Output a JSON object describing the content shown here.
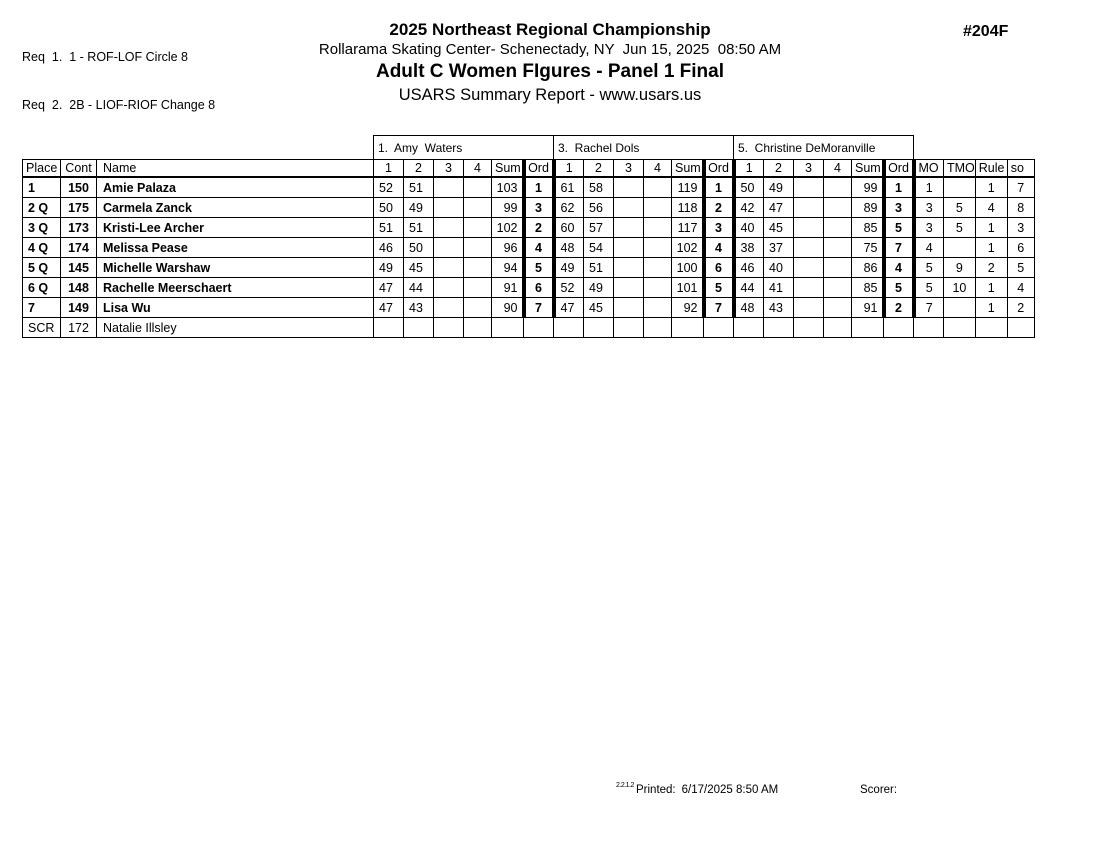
{
  "header": {
    "req_lines": [
      "Req  1.  1 - ROF-LOF Circle 8",
      "Req  2.  2B - LIOF-RIOF Change 8"
    ],
    "title": "2025 Northeast Regional Championship",
    "venue_datetime": "Rollarama Skating Center- Schenectady, NY  Jun 15, 2025  08:50 AM",
    "event_title": "Adult C Women FIgures - Panel 1 Final",
    "report_title": "USARS Summary Report - www.usars.us",
    "event_number": "#204F"
  },
  "table": {
    "judges": [
      "1.  Amy  Waters",
      "3.  Rachel Dols",
      "5.  Christine DeMoranville"
    ],
    "left_headers": [
      "Place",
      "Cont",
      "Name"
    ],
    "judge_headers": [
      "1",
      "2",
      "3",
      "4",
      "Sum",
      "Ord"
    ],
    "right_headers": [
      "MO",
      "TMO",
      "Rule",
      "so"
    ],
    "rows": [
      {
        "place": "1",
        "cont": "150",
        "name": "Amie Palaza",
        "scores": [
          [
            "52",
            "51",
            "",
            "",
            "103",
            "1"
          ],
          [
            "61",
            "58",
            "",
            "",
            "119",
            "1"
          ],
          [
            "50",
            "49",
            "",
            "",
            "99",
            "1"
          ]
        ],
        "mo": "1",
        "tmo": "",
        "rule": "1",
        "so": "7",
        "scratched": false
      },
      {
        "place": "2 Q",
        "cont": "175",
        "name": "Carmela Zanck",
        "scores": [
          [
            "50",
            "49",
            "",
            "",
            "99",
            "3"
          ],
          [
            "62",
            "56",
            "",
            "",
            "118",
            "2"
          ],
          [
            "42",
            "47",
            "",
            "",
            "89",
            "3"
          ]
        ],
        "mo": "3",
        "tmo": "5",
        "rule": "4",
        "so": "8",
        "scratched": false
      },
      {
        "place": "3 Q",
        "cont": "173",
        "name": "Kristi-Lee Archer",
        "scores": [
          [
            "51",
            "51",
            "",
            "",
            "102",
            "2"
          ],
          [
            "60",
            "57",
            "",
            "",
            "117",
            "3"
          ],
          [
            "40",
            "45",
            "",
            "",
            "85",
            "5"
          ]
        ],
        "mo": "3",
        "tmo": "5",
        "rule": "1",
        "so": "3",
        "scratched": false
      },
      {
        "place": "4 Q",
        "cont": "174",
        "name": "Melissa Pease",
        "scores": [
          [
            "46",
            "50",
            "",
            "",
            "96",
            "4"
          ],
          [
            "48",
            "54",
            "",
            "",
            "102",
            "4"
          ],
          [
            "38",
            "37",
            "",
            "",
            "75",
            "7"
          ]
        ],
        "mo": "4",
        "tmo": "",
        "rule": "1",
        "so": "6",
        "scratched": false
      },
      {
        "place": "5 Q",
        "cont": "145",
        "name": "Michelle Warshaw",
        "scores": [
          [
            "49",
            "45",
            "",
            "",
            "94",
            "5"
          ],
          [
            "49",
            "51",
            "",
            "",
            "100",
            "6"
          ],
          [
            "46",
            "40",
            "",
            "",
            "86",
            "4"
          ]
        ],
        "mo": "5",
        "tmo": "9",
        "rule": "2",
        "so": "5",
        "scratched": false
      },
      {
        "place": "6 Q",
        "cont": "148",
        "name": "Rachelle Meerschaert",
        "scores": [
          [
            "47",
            "44",
            "",
            "",
            "91",
            "6"
          ],
          [
            "52",
            "49",
            "",
            "",
            "101",
            "5"
          ],
          [
            "44",
            "41",
            "",
            "",
            "85",
            "5"
          ]
        ],
        "mo": "5",
        "tmo": "10",
        "rule": "1",
        "so": "4",
        "scratched": false
      },
      {
        "place": "7",
        "cont": "149",
        "name": "Lisa Wu",
        "scores": [
          [
            "47",
            "43",
            "",
            "",
            "90",
            "7"
          ],
          [
            "47",
            "45",
            "",
            "",
            "92",
            "7"
          ],
          [
            "48",
            "43",
            "",
            "",
            "91",
            "2"
          ]
        ],
        "mo": "7",
        "tmo": "",
        "rule": "1",
        "so": "2",
        "scratched": false
      },
      {
        "place": "SCR",
        "cont": "172",
        "name": "Natalie Illsley",
        "scores": [
          [
            "",
            "",
            "",
            "",
            "",
            ""
          ],
          [
            "",
            "",
            "",
            "",
            "",
            ""
          ],
          [
            "",
            "",
            "",
            "",
            "",
            ""
          ]
        ],
        "mo": "",
        "tmo": "",
        "rule": "",
        "so": "",
        "scratched": true
      }
    ]
  },
  "footer": {
    "version": "2.2.1.2",
    "printed_label": "Printed:",
    "printed_value": "6/17/2025  8:50 AM",
    "scorer_label": "Scorer:"
  }
}
